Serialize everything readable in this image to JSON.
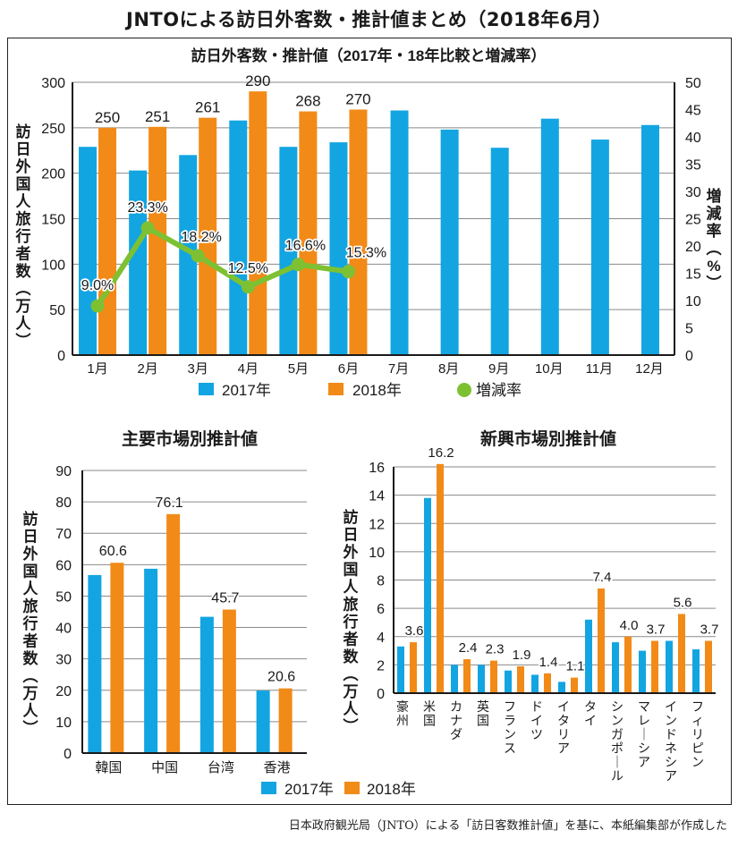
{
  "title": "JNTOによる訪日外客数・推計値まとめ（2018年6月）",
  "colors": {
    "y2017": "#12A5E2",
    "y2018": "#F28A17",
    "rate": "#7DC133",
    "grid": "#8a8a8a",
    "axis": "#1a1a1a"
  },
  "legend": {
    "y2017": "2017年",
    "y2018": "2018年",
    "rate": "増減率"
  },
  "footer": "日本政府観光局（JNTO）による「訪日客数推計値」を基に、本紙編集部が作成した",
  "chart_data": [
    {
      "type": "bar",
      "title": "訪日外客数・推計値（2017年・18年比較と増減率）",
      "ylabel": "訪日外国人旅行者数（万人）",
      "y2label": "増減率（%）",
      "ylim": [
        0,
        300
      ],
      "yticks": [
        0,
        50,
        100,
        150,
        200,
        250,
        300
      ],
      "y2lim": [
        0,
        50
      ],
      "y2ticks": [
        0,
        5,
        10,
        15,
        20,
        25,
        30,
        35,
        40,
        45,
        50
      ],
      "grid": true,
      "legend_position": "bottom",
      "categories": [
        "1月",
        "2月",
        "3月",
        "4月",
        "5月",
        "6月",
        "7月",
        "8月",
        "9月",
        "10月",
        "11月",
        "12月"
      ],
      "series": [
        {
          "name": "2017年",
          "values": [
            229,
            203,
            220,
            258,
            229,
            234,
            269,
            248,
            228,
            260,
            237,
            253
          ]
        },
        {
          "name": "2018年",
          "values": [
            250,
            251,
            261,
            290,
            268,
            270,
            null,
            null,
            null,
            null,
            null,
            null
          ],
          "labels": [
            "250",
            "251",
            "261",
            "290",
            "268",
            "270"
          ]
        },
        {
          "name": "増減率",
          "type": "line",
          "axis": "right",
          "values": [
            9.0,
            23.3,
            18.2,
            12.5,
            16.6,
            15.3
          ],
          "labels": [
            "9.0%",
            "23.3%",
            "18.2%",
            "12.5%",
            "16.6%",
            "15.3%"
          ]
        }
      ]
    },
    {
      "type": "bar",
      "title": "主要市場別推計値",
      "ylabel": "訪日外国人旅行者数（万人）",
      "ylim": [
        0,
        90
      ],
      "yticks": [
        0,
        10,
        20,
        30,
        40,
        50,
        60,
        70,
        80,
        90
      ],
      "grid": true,
      "categories": [
        "韓国",
        "中国",
        "台湾",
        "香港"
      ],
      "series": [
        {
          "name": "2017年",
          "values": [
            56.7,
            58.7,
            43.4,
            19.9
          ]
        },
        {
          "name": "2018年",
          "values": [
            60.6,
            76.1,
            45.7,
            20.6
          ],
          "labels": [
            "60.6",
            "76.1",
            "45.7",
            "20.6"
          ]
        }
      ]
    },
    {
      "type": "bar",
      "title": "新興市場別推計値",
      "ylabel": "訪日外国人旅行者数（万人）",
      "ylim": [
        0,
        16
      ],
      "yticks": [
        0,
        2,
        4,
        6,
        8,
        10,
        12,
        14,
        16
      ],
      "grid": true,
      "categories": [
        "豪州",
        "米国",
        "カナダ",
        "英国",
        "フランス",
        "ドイツ",
        "イタリア",
        "タイ",
        "シンガポール",
        "マレーシア",
        "インドネシア",
        "フィリピン"
      ],
      "series": [
        {
          "name": "2017年",
          "values": [
            3.3,
            13.8,
            2.0,
            2.0,
            1.6,
            1.3,
            0.8,
            5.2,
            3.6,
            3.0,
            3.7,
            3.1
          ]
        },
        {
          "name": "2018年",
          "values": [
            3.6,
            16.2,
            2.4,
            2.3,
            1.9,
            1.4,
            1.1,
            7.4,
            4.0,
            3.7,
            5.6,
            3.7
          ],
          "labels": [
            "3.6",
            "16.2",
            "2.4",
            "2.3",
            "1.9",
            "1.4",
            "1.1",
            "7.4",
            "4.0",
            "3.7",
            "5.6",
            "3.7"
          ]
        }
      ],
      "legend_position": "bottom"
    }
  ]
}
